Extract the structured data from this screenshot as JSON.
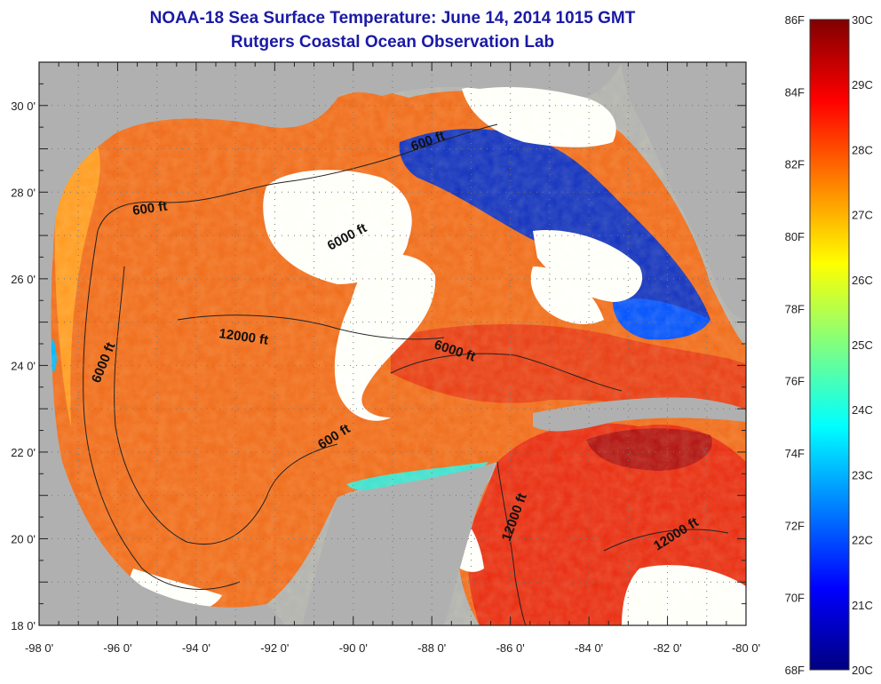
{
  "title": "NOAA-18 Sea Surface Temperature:  June 14, 2014 1015 GMT",
  "subtitle": "Rutgers Coastal Ocean Observation Lab",
  "map": {
    "lon_range": [
      -98,
      -80
    ],
    "lat_range": [
      18,
      31
    ],
    "x_ticks": [
      "-98 0'",
      "-96 0'",
      "-94 0'",
      "-92 0'",
      "-90 0'",
      "-88 0'",
      "-86 0'",
      "-84 0'",
      "-82 0'",
      "-80 0'"
    ],
    "y_ticks": [
      "18 0'",
      "20 0'",
      "22 0'",
      "24 0'",
      "26 0'",
      "28 0'",
      "30 0'"
    ],
    "land_color": "#b0b0b0",
    "cloud_color": "#ffffff"
  },
  "contour_labels": [
    {
      "text": "600 ft"
    },
    {
      "text": "600 ft"
    },
    {
      "text": "6000 ft"
    },
    {
      "text": "6000 ft"
    },
    {
      "text": "6000 ft"
    },
    {
      "text": "12000 ft"
    },
    {
      "text": "600 ft"
    },
    {
      "text": "12000 ft"
    },
    {
      "text": "12000 ft"
    }
  ],
  "colorbar": {
    "f_labels": [
      "86F",
      "84F",
      "82F",
      "80F",
      "78F",
      "76F",
      "74F",
      "72F",
      "70F",
      "68F"
    ],
    "c_labels": [
      "30C",
      "29C",
      "28C",
      "27C",
      "26C",
      "25C",
      "24C",
      "23C",
      "22C",
      "21C",
      "20C"
    ],
    "colors": [
      "#000080",
      "#0000ff",
      "#0080ff",
      "#00ffff",
      "#80ff80",
      "#ffff00",
      "#ff8000",
      "#ff0000",
      "#800000"
    ]
  }
}
